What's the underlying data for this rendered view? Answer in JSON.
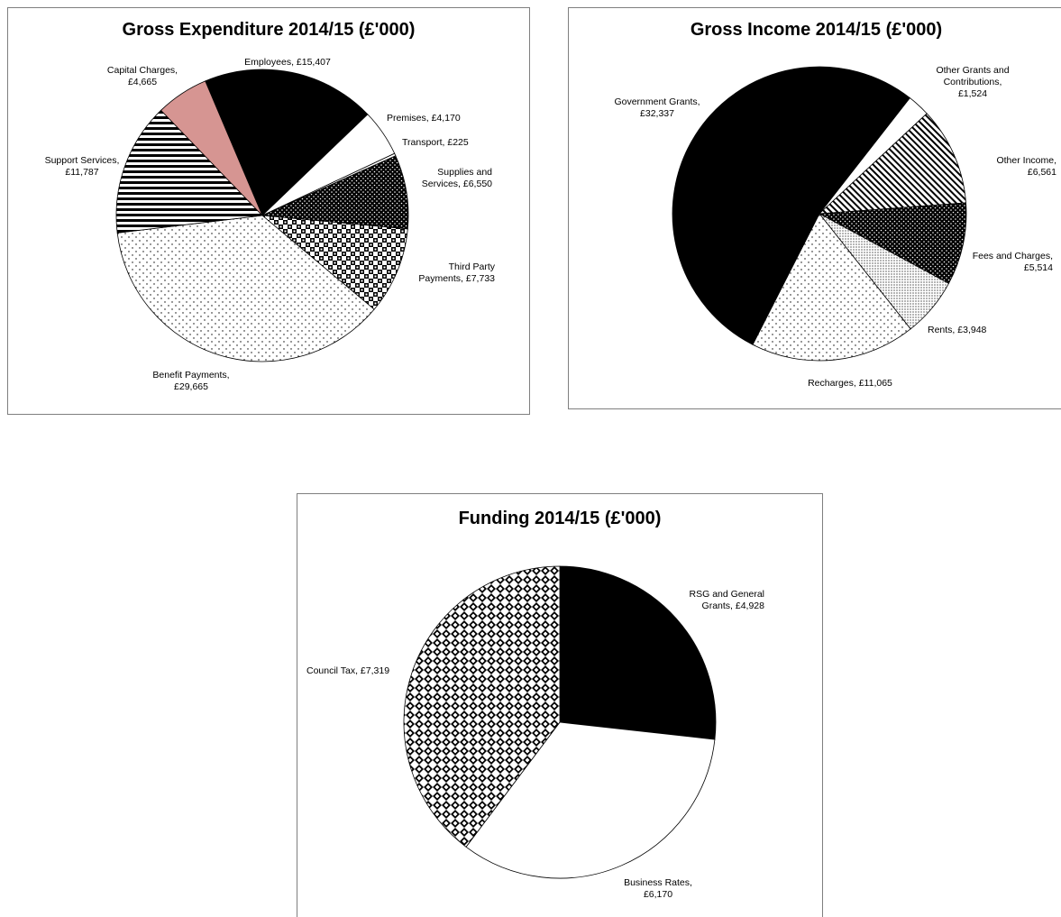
{
  "chart_data": [
    {
      "type": "pie",
      "title": "Gross Expenditure 2014/15 (£'000)",
      "slices": [
        {
          "name": "Employees",
          "value": 15407,
          "label1": "Employees, £15,407",
          "label2": "",
          "pattern": "solid-black"
        },
        {
          "name": "Premises",
          "value": 4170,
          "label1": "Premises, £4,170",
          "label2": "",
          "pattern": "white"
        },
        {
          "name": "Transport",
          "value": 225,
          "label1": "Transport, £225",
          "label2": "",
          "pattern": "white"
        },
        {
          "name": "Supplies and Services",
          "value": 6550,
          "label1": "Supplies and",
          "label2": "Services, £6,550",
          "pattern": "dots-dense"
        },
        {
          "name": "Third Party Payments",
          "value": 7733,
          "label1": "Third Party",
          "label2": "Payments, £7,733",
          "pattern": "checker-large"
        },
        {
          "name": "Benefit Payments",
          "value": 29665,
          "label1": "Benefit Payments,",
          "label2": "£29,665",
          "pattern": "dots-sparse"
        },
        {
          "name": "Support Services",
          "value": 11787,
          "label1": "Support Services,",
          "label2": "£11,787",
          "pattern": "hstripes"
        },
        {
          "name": "Capital Charges",
          "value": 4665,
          "label1": "Capital Charges,",
          "label2": "£4,665",
          "pattern": "pink"
        }
      ]
    },
    {
      "type": "pie",
      "title": "Gross Income 2014/15 (£'000)",
      "slices": [
        {
          "name": "Other Grants and Contributions",
          "value": 1524,
          "label1": "Other Grants and",
          "label2": "Contributions,",
          "label3": "£1,524",
          "pattern": "white"
        },
        {
          "name": "Other Income",
          "value": 6561,
          "label1": "Other Income,",
          "label2": "£6,561",
          "pattern": "diag"
        },
        {
          "name": "Fees and Charges",
          "value": 5514,
          "label1": "Fees and Charges,",
          "label2": "£5,514",
          "pattern": "dots-dense"
        },
        {
          "name": "Rents",
          "value": 3948,
          "label1": "Rents, £3,948",
          "label2": "",
          "pattern": "dots-fine"
        },
        {
          "name": "Recharges",
          "value": 11065,
          "label1": "Recharges, £11,065",
          "label2": "",
          "pattern": "dots-sparse"
        },
        {
          "name": "Government Grants",
          "value": 32337,
          "label1": "Government Grants,",
          "label2": "£32,337",
          "pattern": "solid-black"
        }
      ]
    },
    {
      "type": "pie",
      "title": "Funding 2014/15 (£'000)",
      "slices": [
        {
          "name": "RSG and General Grants",
          "value": 4928,
          "label1": "RSG and General",
          "label2": "Grants, £4,928",
          "pattern": "solid-black"
        },
        {
          "name": "Business Rates",
          "value": 6170,
          "label1": "Business Rates,",
          "label2": "£6,170",
          "pattern": "white"
        },
        {
          "name": "Council Tax",
          "value": 7319,
          "label1": "Council Tax, £7,319",
          "label2": "",
          "pattern": "diamonds"
        }
      ]
    }
  ]
}
